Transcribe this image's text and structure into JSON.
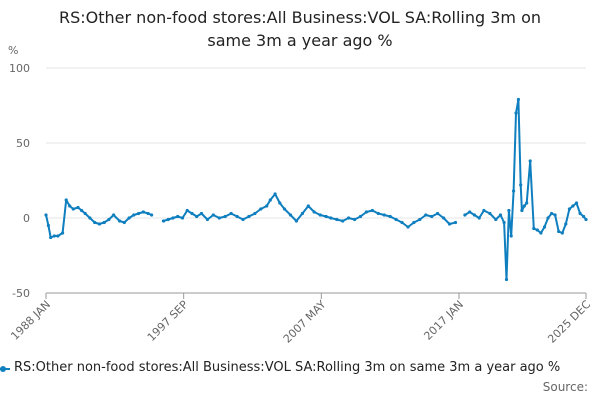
{
  "title": {
    "line1": "RS:Other non-food stores:All Business:VOL SA:Rolling 3m on",
    "line2": "same 3m a year ago %"
  },
  "legend": {
    "label": "RS:Other non-food stores:All Business:VOL SA:Rolling 3m on same 3m a year ago %"
  },
  "source": {
    "label": "Source:"
  },
  "colors": {
    "series": "#0f7fbf",
    "grid": "#e6e6e6",
    "axis": "#999999",
    "tick_text": "#666666"
  },
  "chart_data": {
    "type": "line",
    "title": "RS:Other non-food stores:All Business:VOL SA:Rolling 3m on same 3m a year ago %",
    "ylabel": "%",
    "xlabel": "",
    "ylim": [
      -50,
      100
    ],
    "y_ticks": [
      -50,
      0,
      50,
      100
    ],
    "x_range": [
      "1988-01",
      "2025-12"
    ],
    "x_ticks": [
      {
        "value": "1988-01",
        "label": "1988 JAN"
      },
      {
        "value": "1997-09",
        "label": "1997 SEP"
      },
      {
        "value": "2007-05",
        "label": "2007 MAY"
      },
      {
        "value": "2017-01",
        "label": "2017 JAN"
      },
      {
        "value": "2025-12",
        "label": "2025 DEC"
      }
    ],
    "grid": "horizontal",
    "legend_position": "bottom",
    "series": [
      {
        "name": "RS:Other non-food stores:All Business:VOL SA:Rolling 3m on same 3m a year ago %",
        "segments": [
          {
            "x": [
              "1988-01",
              "1988-03",
              "1988-05",
              "1988-08",
              "1988-11",
              "1989-03",
              "1989-06",
              "1989-09",
              "1989-12",
              "1990-04",
              "1990-07",
              "1990-10",
              "1991-02",
              "1991-06",
              "1991-10",
              "1992-02",
              "1992-06",
              "1992-10",
              "1993-03",
              "1993-07",
              "1993-11",
              "1994-03",
              "1994-07",
              "1994-11",
              "1995-03",
              "1995-06"
            ],
            "y": [
              2,
              -5,
              -13,
              -12,
              -12,
              -10,
              12,
              8,
              6,
              7,
              5,
              3,
              0,
              -3,
              -4,
              -3,
              -1,
              2,
              -2,
              -3,
              0,
              2,
              3,
              4,
              3,
              2
            ]
          },
          {
            "x": [
              "1996-04",
              "1996-08",
              "1996-12",
              "1997-04",
              "1997-08",
              "1997-12",
              "1998-04",
              "1998-08",
              "1998-12",
              "1999-05",
              "1999-10",
              "2000-03",
              "2000-08",
              "2001-01",
              "2001-06",
              "2001-11",
              "2002-04",
              "2002-09",
              "2003-02",
              "2003-07",
              "2003-10",
              "2004-02",
              "2004-06",
              "2004-10",
              "2005-03",
              "2005-08",
              "2006-01",
              "2006-06",
              "2006-11",
              "2007-04",
              "2007-09",
              "2008-01",
              "2008-06",
              "2008-11",
              "2009-04",
              "2009-09",
              "2010-02",
              "2010-07",
              "2010-12",
              "2011-05",
              "2011-10",
              "2012-03",
              "2012-08",
              "2013-01",
              "2013-06",
              "2013-11",
              "2014-04",
              "2014-09",
              "2015-02",
              "2015-07",
              "2015-12",
              "2016-05",
              "2016-10"
            ],
            "y": [
              -2,
              -1,
              0,
              1,
              0,
              5,
              3,
              1,
              3,
              -1,
              2,
              0,
              1,
              3,
              1,
              -1,
              1,
              3,
              6,
              8,
              12,
              16,
              10,
              6,
              2,
              -2,
              3,
              8,
              4,
              2,
              1,
              0,
              -1,
              -2,
              0,
              -1,
              1,
              4,
              5,
              3,
              2,
              1,
              -1,
              -3,
              -6,
              -3,
              -1,
              2,
              1,
              3,
              0,
              -4,
              -3
            ]
          },
          {
            "x": [
              "2017-06",
              "2017-10",
              "2018-02",
              "2018-06",
              "2018-10",
              "2019-03",
              "2019-08",
              "2019-12",
              "2020-03",
              "2020-05",
              "2020-07",
              "2020-09",
              "2020-11",
              "2021-01",
              "2021-03",
              "2021-05",
              "2021-06",
              "2021-08",
              "2021-10",
              "2022-01",
              "2022-04",
              "2022-07",
              "2022-10",
              "2023-01",
              "2023-04",
              "2023-07",
              "2023-10",
              "2024-01",
              "2024-04",
              "2024-07",
              "2024-10",
              "2025-01",
              "2025-04",
              "2025-07",
              "2025-10",
              "2025-12"
            ],
            "y": [
              2,
              4,
              2,
              0,
              5,
              3,
              -1,
              2,
              -3,
              -41,
              5,
              -12,
              18,
              70,
              79,
              22,
              5,
              8,
              10,
              38,
              -7,
              -8,
              -10,
              -6,
              0,
              3,
              2,
              -9,
              -10,
              -4,
              6,
              8,
              10,
              3,
              1,
              -1
            ]
          }
        ]
      }
    ]
  }
}
